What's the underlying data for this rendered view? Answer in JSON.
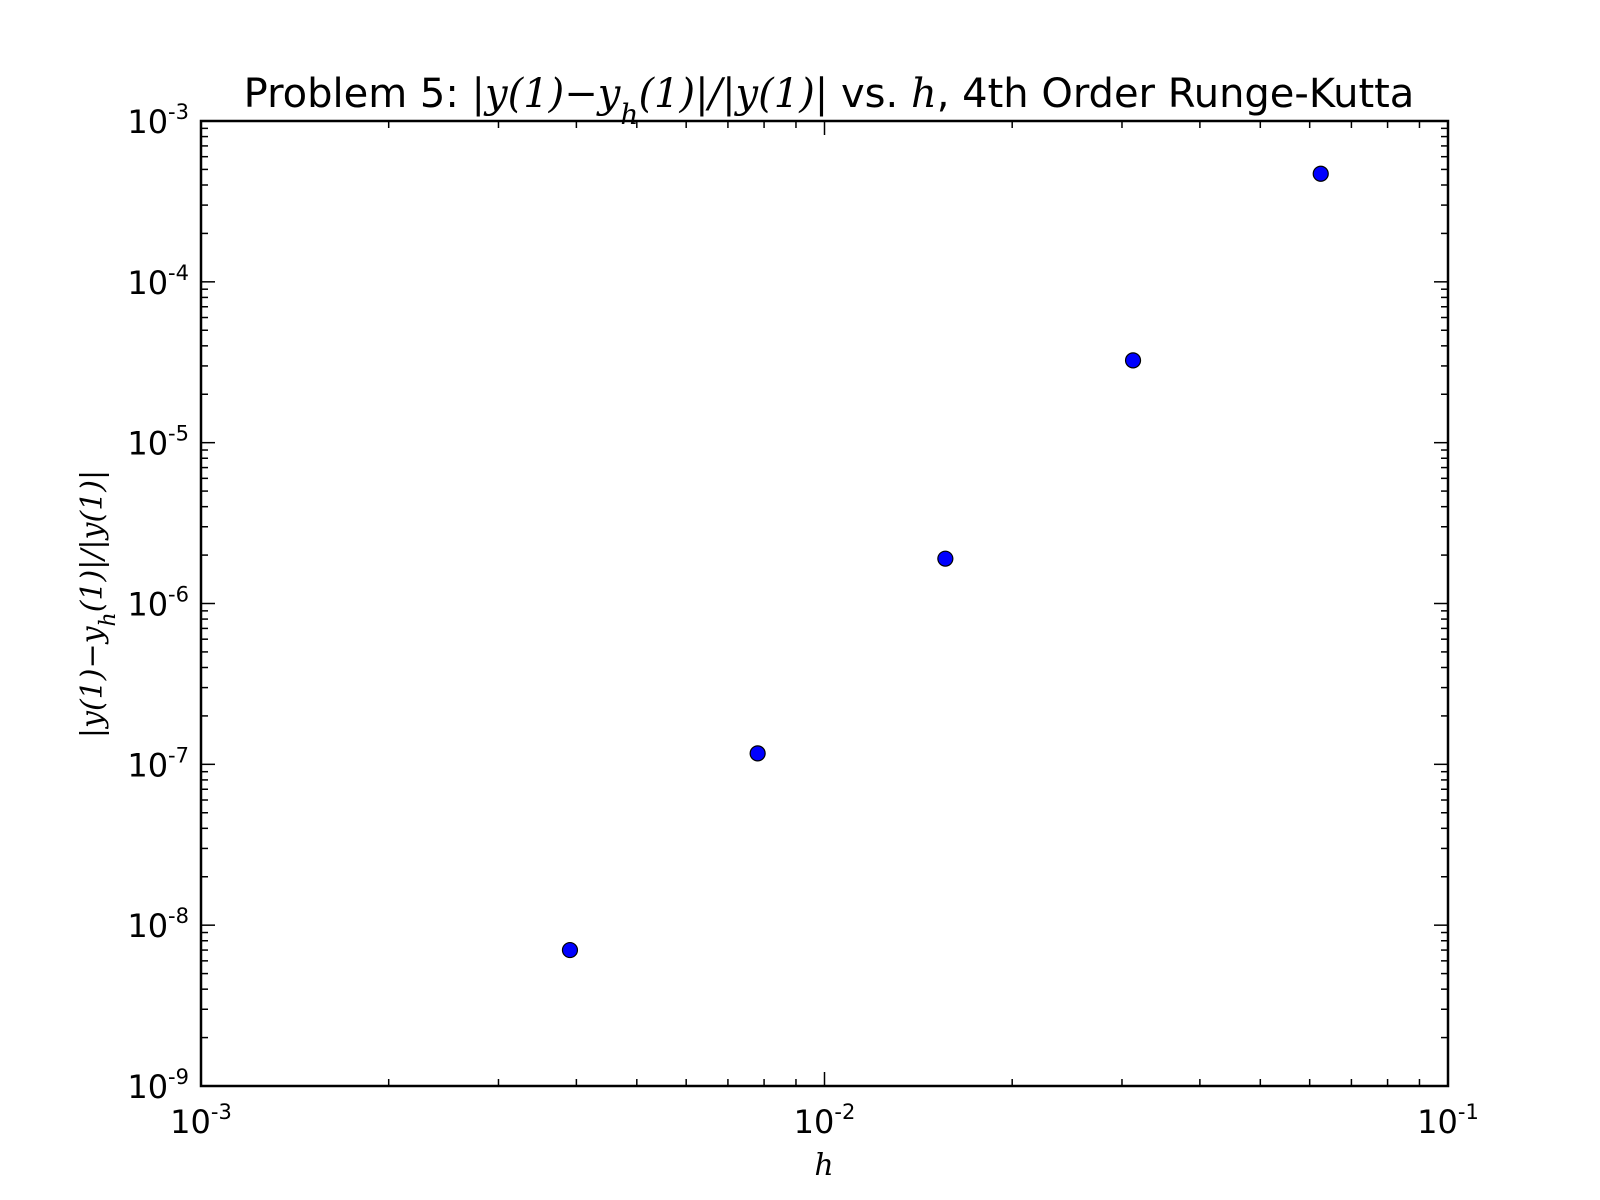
{
  "chart_data": {
    "type": "scatter",
    "title": {
      "prefix": "Problem 5: ",
      "math1": "|y(1)−y",
      "math1_sub": "h",
      "math2": "(1)|/|y(1)|",
      "middle": " vs. ",
      "math3": "h",
      "suffix": ", 4th Order Runge-Kutta"
    },
    "xlabel": "h",
    "ylabel": {
      "part1": "|y(1)−y",
      "sub": "h",
      "part2": "(1)|/|y(1)|"
    },
    "x_scale": "log",
    "y_scale": "log",
    "xlim": [
      0.001,
      0.1
    ],
    "ylim": [
      1e-09,
      0.001
    ],
    "x_ticks": [
      {
        "value": 0.001,
        "base": "10",
        "exp": "-3"
      },
      {
        "value": 0.01,
        "base": "10",
        "exp": "-2"
      },
      {
        "value": 0.1,
        "base": "10",
        "exp": "-1"
      }
    ],
    "y_ticks": [
      {
        "value": 1e-09,
        "base": "10",
        "exp": "-9"
      },
      {
        "value": 1e-08,
        "base": "10",
        "exp": "-8"
      },
      {
        "value": 1e-07,
        "base": "10",
        "exp": "-7"
      },
      {
        "value": 1e-06,
        "base": "10",
        "exp": "-6"
      },
      {
        "value": 1e-05,
        "base": "10",
        "exp": "-5"
      },
      {
        "value": 0.0001,
        "base": "10",
        "exp": "-4"
      },
      {
        "value": 0.001,
        "base": "10",
        "exp": "-3"
      }
    ],
    "grid": false,
    "marker_color": "#0000ff",
    "marker_edge_color": "#000000",
    "points": [
      {
        "x": 0.00390625,
        "y": 7e-09
      },
      {
        "x": 0.0078125,
        "y": 1.17e-07
      },
      {
        "x": 0.015625,
        "y": 1.9e-06
      },
      {
        "x": 0.03125,
        "y": 3.25e-05
      },
      {
        "x": 0.0625,
        "y": 0.00047
      }
    ]
  }
}
